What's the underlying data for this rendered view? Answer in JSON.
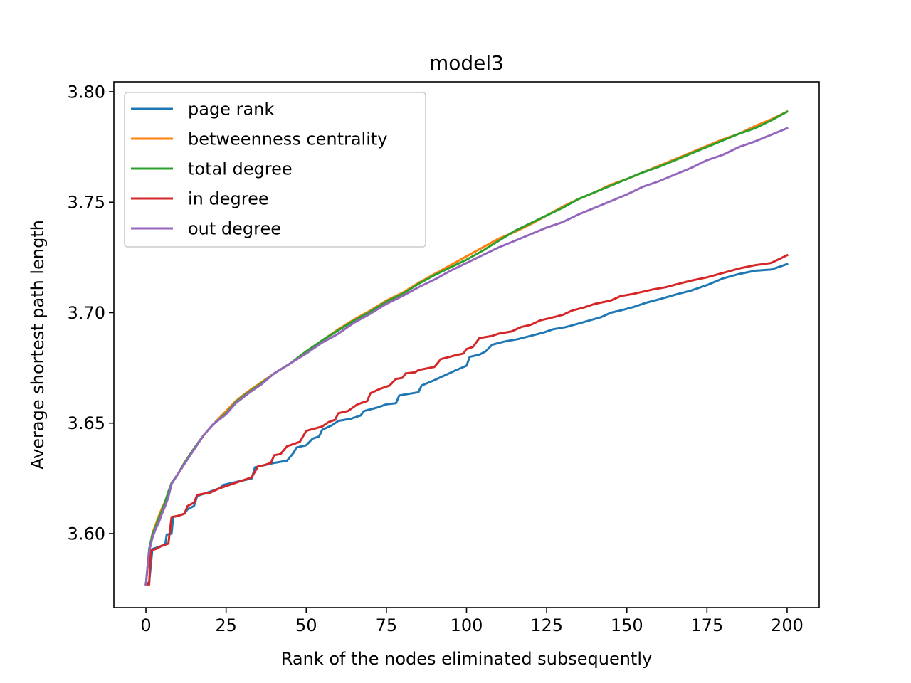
{
  "chart_data": {
    "type": "line",
    "title": "model3",
    "xlabel": "Rank of the nodes eliminated subsequently",
    "ylabel": "Average shortest path length",
    "xlim": [
      -10,
      210
    ],
    "ylim": [
      3.5665,
      3.8045
    ],
    "xticks": [
      0,
      25,
      50,
      75,
      100,
      125,
      150,
      175,
      200
    ],
    "xtick_labels": [
      "0",
      "25",
      "50",
      "75",
      "100",
      "125",
      "150",
      "175",
      "200"
    ],
    "yticks": [
      3.6,
      3.65,
      3.7,
      3.75,
      3.8
    ],
    "ytick_labels": [
      "3.60",
      "3.65",
      "3.70",
      "3.75",
      "3.80"
    ],
    "grid": false,
    "legend_position": "upper-left",
    "series": [
      {
        "name": "page rank",
        "color": "#1f77b4",
        "points": [
          [
            0,
            3.577
          ],
          [
            1,
            3.578
          ],
          [
            2,
            3.593
          ],
          [
            3,
            3.5935
          ],
          [
            4,
            3.594
          ],
          [
            5,
            3.5945
          ],
          [
            6,
            3.595
          ],
          [
            6.5,
            3.5995
          ],
          [
            8,
            3.6
          ],
          [
            8.5,
            3.6075
          ],
          [
            10,
            3.608
          ],
          [
            12,
            3.609
          ],
          [
            13,
            3.611
          ],
          [
            15,
            3.6125
          ],
          [
            16,
            3.617
          ],
          [
            20,
            3.619
          ],
          [
            23,
            3.6205
          ],
          [
            24,
            3.622
          ],
          [
            27,
            3.623
          ],
          [
            30,
            3.624
          ],
          [
            33,
            3.625
          ],
          [
            34,
            3.63
          ],
          [
            40,
            3.632
          ],
          [
            44,
            3.633
          ],
          [
            46,
            3.6365
          ],
          [
            47,
            3.639
          ],
          [
            50,
            3.64
          ],
          [
            52,
            3.643
          ],
          [
            54,
            3.644
          ],
          [
            55,
            3.647
          ],
          [
            58,
            3.649
          ],
          [
            60,
            3.651
          ],
          [
            64,
            3.652
          ],
          [
            67,
            3.6535
          ],
          [
            68,
            3.6555
          ],
          [
            72,
            3.657
          ],
          [
            75,
            3.6585
          ],
          [
            78,
            3.659
          ],
          [
            79,
            3.6625
          ],
          [
            83,
            3.6635
          ],
          [
            85,
            3.664
          ],
          [
            86,
            3.667
          ],
          [
            90,
            3.6695
          ],
          [
            93,
            3.6715
          ],
          [
            96,
            3.6735
          ],
          [
            100,
            3.676
          ],
          [
            101,
            3.68
          ],
          [
            104,
            3.681
          ],
          [
            106,
            3.6825
          ],
          [
            108,
            3.6855
          ],
          [
            112,
            3.687
          ],
          [
            116,
            3.688
          ],
          [
            120,
            3.6895
          ],
          [
            124,
            3.691
          ],
          [
            127,
            3.6925
          ],
          [
            131,
            3.6935
          ],
          [
            136,
            3.6955
          ],
          [
            142,
            3.698
          ],
          [
            145,
            3.7
          ],
          [
            148,
            3.701
          ],
          [
            152,
            3.7025
          ],
          [
            156,
            3.7045
          ],
          [
            160,
            3.706
          ],
          [
            166,
            3.7085
          ],
          [
            170,
            3.71
          ],
          [
            175,
            3.7125
          ],
          [
            180,
            3.7155
          ],
          [
            185,
            3.7175
          ],
          [
            190,
            3.719
          ],
          [
            195,
            3.7195
          ],
          [
            200,
            3.722
          ]
        ]
      },
      {
        "name": "betweenness centrality",
        "color": "#ff7f0e",
        "points": [
          [
            0,
            3.577
          ],
          [
            1,
            3.592
          ],
          [
            2,
            3.6
          ],
          [
            3,
            3.604
          ],
          [
            4,
            3.608
          ],
          [
            5,
            3.6115
          ],
          [
            6,
            3.6145
          ],
          [
            7,
            3.6185
          ],
          [
            8,
            3.6225
          ],
          [
            10,
            3.627
          ],
          [
            12,
            3.632
          ],
          [
            15,
            3.6385
          ],
          [
            18,
            3.6445
          ],
          [
            21,
            3.6495
          ],
          [
            25,
            3.6555
          ],
          [
            28,
            3.66
          ],
          [
            32,
            3.6645
          ],
          [
            36,
            3.6685
          ],
          [
            40,
            3.6725
          ],
          [
            45,
            3.677
          ],
          [
            50,
            3.6825
          ],
          [
            55,
            3.6875
          ],
          [
            60,
            3.6925
          ],
          [
            65,
            3.697
          ],
          [
            70,
            3.701
          ],
          [
            75,
            3.7055
          ],
          [
            80,
            3.709
          ],
          [
            85,
            3.7135
          ],
          [
            90,
            3.7175
          ],
          [
            95,
            3.7215
          ],
          [
            100,
            3.7255
          ],
          [
            105,
            3.7295
          ],
          [
            110,
            3.7335
          ],
          [
            115,
            3.7365
          ],
          [
            120,
            3.74
          ],
          [
            125,
            3.744
          ],
          [
            130,
            3.748
          ],
          [
            135,
            3.7515
          ],
          [
            140,
            3.7545
          ],
          [
            145,
            3.758
          ],
          [
            150,
            3.7605
          ],
          [
            155,
            3.7635
          ],
          [
            160,
            3.7665
          ],
          [
            165,
            3.7695
          ],
          [
            170,
            3.7725
          ],
          [
            175,
            3.7755
          ],
          [
            180,
            3.7785
          ],
          [
            185,
            3.781
          ],
          [
            190,
            3.7845
          ],
          [
            195,
            3.7875
          ],
          [
            200,
            3.791
          ]
        ]
      },
      {
        "name": "total degree",
        "color": "#2ca02c",
        "points": [
          [
            0,
            3.577
          ],
          [
            1,
            3.593
          ],
          [
            2,
            3.5995
          ],
          [
            3,
            3.603
          ],
          [
            4,
            3.607
          ],
          [
            5,
            3.6105
          ],
          [
            6,
            3.6145
          ],
          [
            7,
            3.619
          ],
          [
            8,
            3.623
          ],
          [
            10,
            3.627
          ],
          [
            12,
            3.632
          ],
          [
            15,
            3.6385
          ],
          [
            18,
            3.6445
          ],
          [
            21,
            3.6495
          ],
          [
            25,
            3.6545
          ],
          [
            28,
            3.6595
          ],
          [
            32,
            3.664
          ],
          [
            36,
            3.668
          ],
          [
            40,
            3.6725
          ],
          [
            45,
            3.677
          ],
          [
            50,
            3.6825
          ],
          [
            55,
            3.6875
          ],
          [
            60,
            3.692
          ],
          [
            65,
            3.6965
          ],
          [
            70,
            3.7005
          ],
          [
            75,
            3.705
          ],
          [
            80,
            3.7085
          ],
          [
            85,
            3.713
          ],
          [
            90,
            3.717
          ],
          [
            95,
            3.7205
          ],
          [
            100,
            3.724
          ],
          [
            105,
            3.728
          ],
          [
            110,
            3.7325
          ],
          [
            115,
            3.737
          ],
          [
            120,
            3.7405
          ],
          [
            125,
            3.744
          ],
          [
            130,
            3.7475
          ],
          [
            135,
            3.7515
          ],
          [
            140,
            3.7545
          ],
          [
            145,
            3.7575
          ],
          [
            150,
            3.7605
          ],
          [
            155,
            3.7635
          ],
          [
            160,
            3.766
          ],
          [
            165,
            3.769
          ],
          [
            170,
            3.772
          ],
          [
            175,
            3.775
          ],
          [
            180,
            3.778
          ],
          [
            185,
            3.781
          ],
          [
            190,
            3.7835
          ],
          [
            195,
            3.787
          ],
          [
            200,
            3.791
          ]
        ]
      },
      {
        "name": "in degree",
        "color": "#d62728",
        "points": [
          [
            0,
            3.577
          ],
          [
            1,
            3.577
          ],
          [
            1.5,
            3.5925
          ],
          [
            3,
            3.593
          ],
          [
            5,
            3.5945
          ],
          [
            7,
            3.5955
          ],
          [
            8,
            3.6075
          ],
          [
            10,
            3.608
          ],
          [
            12,
            3.609
          ],
          [
            13,
            3.6125
          ],
          [
            15,
            3.614
          ],
          [
            16,
            3.6175
          ],
          [
            20,
            3.6185
          ],
          [
            23,
            3.6205
          ],
          [
            25,
            3.6215
          ],
          [
            27,
            3.6225
          ],
          [
            30,
            3.624
          ],
          [
            33,
            3.6255
          ],
          [
            35,
            3.6305
          ],
          [
            37,
            3.631
          ],
          [
            39,
            3.632
          ],
          [
            40,
            3.6355
          ],
          [
            42,
            3.636
          ],
          [
            44,
            3.6395
          ],
          [
            48,
            3.6415
          ],
          [
            50,
            3.6465
          ],
          [
            55,
            3.6485
          ],
          [
            57,
            3.6505
          ],
          [
            59,
            3.6515
          ],
          [
            60,
            3.6545
          ],
          [
            63,
            3.6555
          ],
          [
            66,
            3.6585
          ],
          [
            69,
            3.66
          ],
          [
            70,
            3.6635
          ],
          [
            73,
            3.6655
          ],
          [
            76,
            3.667
          ],
          [
            78,
            3.67
          ],
          [
            80,
            3.6705
          ],
          [
            81,
            3.6725
          ],
          [
            84,
            3.673
          ],
          [
            85,
            3.674
          ],
          [
            90,
            3.6755
          ],
          [
            92,
            3.679
          ],
          [
            96,
            3.6805
          ],
          [
            99,
            3.6815
          ],
          [
            100,
            3.6835
          ],
          [
            102,
            3.6845
          ],
          [
            104,
            3.6885
          ],
          [
            108,
            3.6895
          ],
          [
            110,
            3.6905
          ],
          [
            114,
            3.6915
          ],
          [
            117,
            3.6935
          ],
          [
            120,
            3.6945
          ],
          [
            123,
            3.6965
          ],
          [
            126,
            3.6975
          ],
          [
            130,
            3.699
          ],
          [
            133,
            3.701
          ],
          [
            137,
            3.7025
          ],
          [
            140,
            3.704
          ],
          [
            145,
            3.7055
          ],
          [
            148,
            3.7075
          ],
          [
            152,
            3.7085
          ],
          [
            158,
            3.7105
          ],
          [
            162,
            3.7115
          ],
          [
            166,
            3.713
          ],
          [
            170,
            3.7145
          ],
          [
            175,
            3.716
          ],
          [
            180,
            3.718
          ],
          [
            185,
            3.72
          ],
          [
            190,
            3.7215
          ],
          [
            195,
            3.7225
          ],
          [
            200,
            3.726
          ]
        ]
      },
      {
        "name": "out degree",
        "color": "#9467bd",
        "points": [
          [
            0,
            3.577
          ],
          [
            1,
            3.592
          ],
          [
            2,
            3.598
          ],
          [
            3,
            3.602
          ],
          [
            4,
            3.605
          ],
          [
            5,
            3.609
          ],
          [
            6,
            3.6125
          ],
          [
            7,
            3.6165
          ],
          [
            8,
            3.6225
          ],
          [
            10,
            3.627
          ],
          [
            12,
            3.6315
          ],
          [
            15,
            3.638
          ],
          [
            18,
            3.6445
          ],
          [
            21,
            3.6495
          ],
          [
            25,
            3.654
          ],
          [
            28,
            3.659
          ],
          [
            32,
            3.6635
          ],
          [
            36,
            3.6675
          ],
          [
            40,
            3.6725
          ],
          [
            45,
            3.677
          ],
          [
            50,
            3.6815
          ],
          [
            55,
            3.6865
          ],
          [
            60,
            3.6905
          ],
          [
            65,
            3.6955
          ],
          [
            70,
            3.6995
          ],
          [
            75,
            3.704
          ],
          [
            80,
            3.7075
          ],
          [
            85,
            3.7115
          ],
          [
            90,
            3.715
          ],
          [
            95,
            3.719
          ],
          [
            100,
            3.7225
          ],
          [
            105,
            3.726
          ],
          [
            110,
            3.7295
          ],
          [
            115,
            3.7325
          ],
          [
            120,
            3.7355
          ],
          [
            125,
            3.7385
          ],
          [
            130,
            3.741
          ],
          [
            135,
            3.7445
          ],
          [
            140,
            3.7475
          ],
          [
            145,
            3.7505
          ],
          [
            150,
            3.7535
          ],
          [
            155,
            3.757
          ],
          [
            160,
            3.7595
          ],
          [
            165,
            3.7625
          ],
          [
            170,
            3.7655
          ],
          [
            175,
            3.769
          ],
          [
            180,
            3.7715
          ],
          [
            185,
            3.775
          ],
          [
            190,
            3.7775
          ],
          [
            195,
            3.7805
          ],
          [
            200,
            3.7835
          ]
        ]
      }
    ]
  }
}
